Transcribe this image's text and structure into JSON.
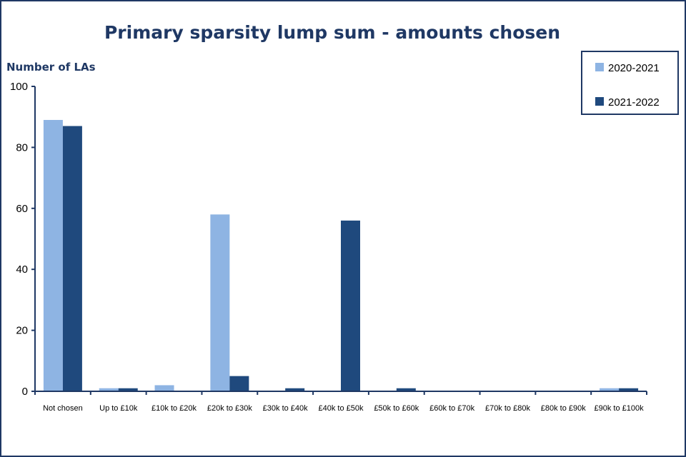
{
  "chart_data": {
    "type": "bar",
    "title": "Primary sparsity lump sum - amounts chosen",
    "ylabel": "Number of LAs",
    "xlabel": "",
    "ylim": [
      0,
      100
    ],
    "yticks": [
      0,
      20,
      40,
      60,
      80,
      100
    ],
    "grid": false,
    "legend_position": "top-right",
    "categories": [
      "Not chosen",
      "Up to £10k",
      "£10k to £20k",
      "£20k to £30k",
      "£30k to £40k",
      "£40k to £50k",
      "£50k to £60k",
      "£60k to £70k",
      "£70k to £80k",
      "£80k to £90k",
      "£90k to £100k"
    ],
    "series": [
      {
        "name": "2020-2021",
        "color": "#8eb4e3",
        "values": [
          89,
          1,
          2,
          58,
          0,
          0,
          0,
          0,
          0,
          0,
          1
        ]
      },
      {
        "name": "2021-2022",
        "color": "#1f497d",
        "values": [
          87,
          1,
          0,
          5,
          1,
          56,
          1,
          0,
          0,
          0,
          1
        ]
      }
    ],
    "axis_color": "#1f3864"
  }
}
